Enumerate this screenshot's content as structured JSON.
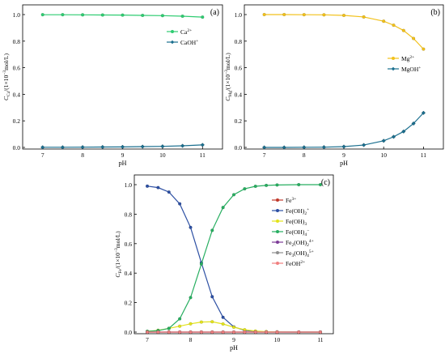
{
  "chart_data": [
    {
      "type": "line",
      "panel_label": "(a)",
      "xlabel": "pH",
      "ylabel_main": "C",
      "ylabel_sub": "Ca",
      "ylabel_rest": "/(1×10",
      "ylabel_exp": "−3",
      "ylabel_unit": "mol/L)",
      "xlim": [
        6.5,
        11.5
      ],
      "ylim": [
        0,
        1.0
      ],
      "xticks": [
        "7",
        "8",
        "9",
        "10",
        "11"
      ],
      "yticks": [
        "0.0",
        "0.2",
        "0.4",
        "0.6",
        "0.8",
        "1.0"
      ],
      "legend_position": "upper-right",
      "x": [
        7.0,
        7.5,
        8.0,
        8.5,
        9.0,
        9.5,
        10.0,
        10.5,
        11.0
      ],
      "series": [
        {
          "name": "Ca",
          "sup": "2+",
          "color": "#2ecc71",
          "marker": "circle",
          "values": [
            0.999,
            0.999,
            0.998,
            0.997,
            0.996,
            0.994,
            0.992,
            0.988,
            0.981
          ]
        },
        {
          "name": "CaOH",
          "sup": "+",
          "color": "#1a6f8f",
          "marker": "diamond",
          "values": [
            0.001,
            0.001,
            0.002,
            0.003,
            0.004,
            0.006,
            0.008,
            0.012,
            0.019
          ]
        }
      ]
    },
    {
      "type": "line",
      "panel_label": "(b)",
      "xlabel": "pH",
      "ylabel_main": "C",
      "ylabel_sub": "Mg",
      "ylabel_rest": "/(1×10",
      "ylabel_exp": "−3",
      "ylabel_unit": "mol/L)",
      "xlim": [
        6.5,
        11.5
      ],
      "ylim": [
        0,
        1.0
      ],
      "xticks": [
        "7",
        "8",
        "9",
        "10",
        "11"
      ],
      "yticks": [
        "0.0",
        "0.2",
        "0.4",
        "0.6",
        "0.8",
        "1.0"
      ],
      "legend_position": "center-right",
      "x": [
        7.0,
        7.5,
        8.0,
        8.5,
        9.0,
        9.5,
        10.0,
        10.25,
        10.5,
        10.75,
        11.0
      ],
      "series": [
        {
          "name": "Mg",
          "sup": "2+",
          "color": "#f2c11a",
          "marker": "circle",
          "values": [
            1.0,
            1.0,
            0.999,
            0.998,
            0.994,
            0.982,
            0.95,
            0.92,
            0.88,
            0.82,
            0.74
          ]
        },
        {
          "name": "MgOH",
          "sup": "+",
          "color": "#1a6f8f",
          "marker": "diamond",
          "values": [
            0.0,
            0.0,
            0.001,
            0.002,
            0.006,
            0.018,
            0.05,
            0.08,
            0.12,
            0.18,
            0.26
          ]
        }
      ]
    },
    {
      "type": "line",
      "panel_label": "(c)",
      "xlabel": "pH",
      "ylabel_main": "C",
      "ylabel_sub": "Fe",
      "ylabel_rest": "/(1×10",
      "ylabel_exp": "−3",
      "ylabel_unit": "mol/L)",
      "xlim": [
        6.7,
        11.3
      ],
      "ylim": [
        0,
        1.0
      ],
      "xticks": [
        "7",
        "8",
        "9",
        "10",
        "11"
      ],
      "yticks": [
        "0.0",
        "0.2",
        "0.4",
        "0.6",
        "0.8",
        "1.0"
      ],
      "legend_position": "center-right",
      "x": [
        7.0,
        7.25,
        7.5,
        7.75,
        8.0,
        8.25,
        8.5,
        8.75,
        9.0,
        9.25,
        9.5,
        9.75,
        10.0,
        10.5,
        11.0
      ],
      "series": [
        {
          "name": "Fe",
          "sup": "3+",
          "color": "#c0392b",
          "marker": "circle",
          "values": [
            0,
            0,
            0,
            0,
            0,
            0,
            0,
            0,
            0,
            0,
            0,
            0,
            0,
            0,
            0
          ]
        },
        {
          "name": "Fe(OH)",
          "sub": "2",
          "sup": "+",
          "color": "#2c4fa3",
          "marker": "circle",
          "values": [
            0.99,
            0.98,
            0.95,
            0.87,
            0.71,
            0.47,
            0.24,
            0.1,
            0.035,
            0.012,
            0.004,
            0.0015,
            0.0005,
            0,
            0
          ]
        },
        {
          "name": "Fe(OH)",
          "sub": "3",
          "sup": "",
          "color": "#e3e31a",
          "marker": "circle",
          "values": [
            0.005,
            0.012,
            0.025,
            0.04,
            0.056,
            0.068,
            0.07,
            0.055,
            0.033,
            0.016,
            0.007,
            0.003,
            0.001,
            0,
            0
          ]
        },
        {
          "name": "Fe(OH)",
          "sub": "4",
          "sup": "−",
          "color": "#27ae60",
          "marker": "circle",
          "values": [
            0.005,
            0.01,
            0.025,
            0.09,
            0.234,
            0.462,
            0.69,
            0.845,
            0.932,
            0.972,
            0.989,
            0.995,
            0.998,
            1.0,
            1.0
          ]
        },
        {
          "name": "Fe",
          "sub": "2",
          "mid": "(OH)",
          "sub2": "2",
          "sup": "4+",
          "color": "#7d3c98",
          "marker": "circle",
          "values": [
            0,
            0,
            0,
            0,
            0,
            0,
            0,
            0,
            0,
            0,
            0,
            0,
            0,
            0,
            0
          ]
        },
        {
          "name": "Fe",
          "sub": "3",
          "mid": "(OH)",
          "sub2": "4",
          "sup": "5+",
          "color": "#8e8e8e",
          "marker": "circle",
          "values": [
            0,
            0,
            0,
            0,
            0,
            0,
            0,
            0,
            0,
            0,
            0,
            0,
            0,
            0,
            0
          ]
        },
        {
          "name": "FeOH",
          "sup": "2+",
          "color": "#f08080",
          "marker": "circle",
          "values": [
            0,
            0,
            0,
            0,
            0,
            0,
            0,
            0,
            0,
            0,
            0,
            0,
            0,
            0,
            0
          ]
        }
      ]
    }
  ]
}
